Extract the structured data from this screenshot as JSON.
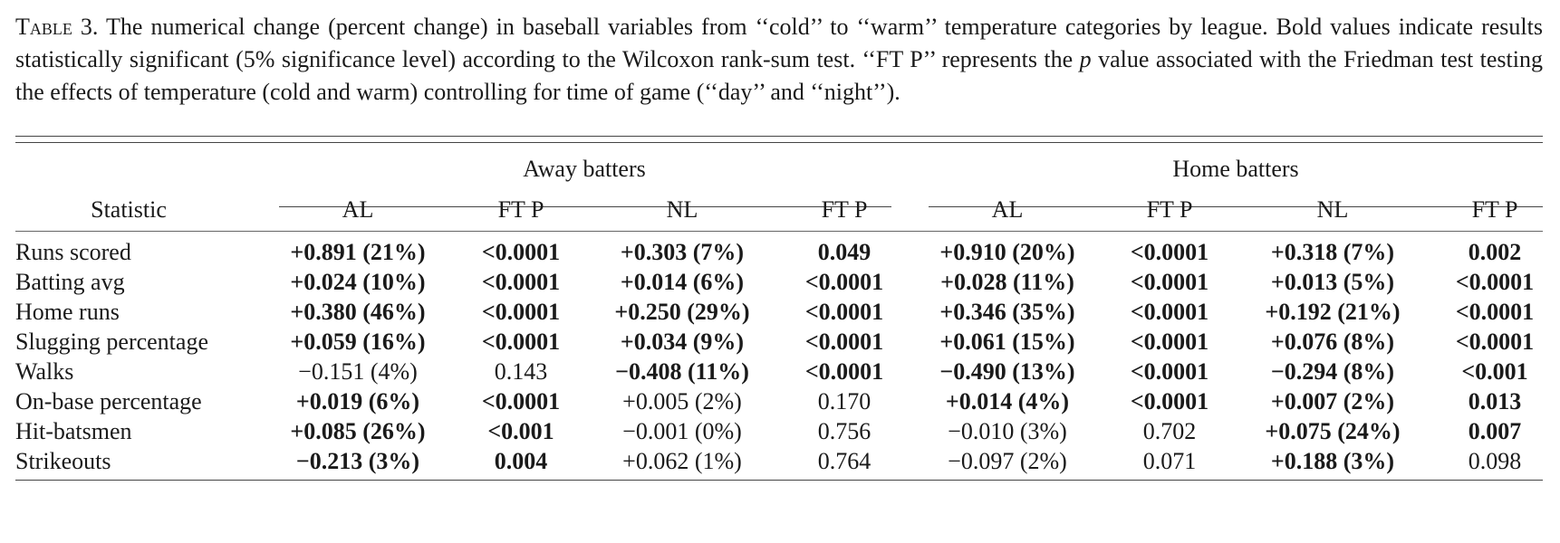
{
  "caption": {
    "label": "Table 3.",
    "text_before_p": " The numerical change (percent change) in baseball variables from ‘‘cold’’ to ‘‘warm’’ temperature categories by league. Bold values indicate results statistically significant (5% significance level) according to the Wilcoxon rank-sum test. ‘‘FT P’’ represents the ",
    "p_symbol": "p",
    "text_after_p": " value associated with the Friedman test testing the effects of temperature (cold and warm) controlling for time of game (‘‘day’’ and ‘‘night’’)."
  },
  "table": {
    "group_headers": [
      "Away batters",
      "Home batters"
    ],
    "statistic_header": "Statistic",
    "column_headers": [
      "AL",
      "FT P",
      "NL",
      "FT P",
      "AL",
      "FT P",
      "NL",
      "FT P"
    ],
    "rows": [
      {
        "statistic": "Runs scored",
        "cells": [
          {
            "text": "+0.891 (21%)",
            "bold": true
          },
          {
            "text": "<0.0001",
            "bold": true
          },
          {
            "text": "+0.303 (7%)",
            "bold": true
          },
          {
            "text": "0.049",
            "bold": true
          },
          {
            "text": "+0.910 (20%)",
            "bold": true
          },
          {
            "text": "<0.0001",
            "bold": true
          },
          {
            "text": "+0.318 (7%)",
            "bold": true
          },
          {
            "text": "0.002",
            "bold": true
          }
        ]
      },
      {
        "statistic": "Batting avg",
        "cells": [
          {
            "text": "+0.024 (10%)",
            "bold": true
          },
          {
            "text": "<0.0001",
            "bold": true
          },
          {
            "text": "+0.014 (6%)",
            "bold": true
          },
          {
            "text": "<0.0001",
            "bold": true
          },
          {
            "text": "+0.028 (11%)",
            "bold": true
          },
          {
            "text": "<0.0001",
            "bold": true
          },
          {
            "text": "+0.013 (5%)",
            "bold": true
          },
          {
            "text": "<0.0001",
            "bold": true
          }
        ]
      },
      {
        "statistic": "Home runs",
        "cells": [
          {
            "text": "+0.380 (46%)",
            "bold": true
          },
          {
            "text": "<0.0001",
            "bold": true
          },
          {
            "text": "+0.250 (29%)",
            "bold": true
          },
          {
            "text": "<0.0001",
            "bold": true
          },
          {
            "text": "+0.346 (35%)",
            "bold": true
          },
          {
            "text": "<0.0001",
            "bold": true
          },
          {
            "text": "+0.192 (21%)",
            "bold": true
          },
          {
            "text": "<0.0001",
            "bold": true
          }
        ]
      },
      {
        "statistic": "Slugging percentage",
        "cells": [
          {
            "text": "+0.059 (16%)",
            "bold": true
          },
          {
            "text": "<0.0001",
            "bold": true
          },
          {
            "text": "+0.034 (9%)",
            "bold": true
          },
          {
            "text": "<0.0001",
            "bold": true
          },
          {
            "text": "+0.061 (15%)",
            "bold": true
          },
          {
            "text": "<0.0001",
            "bold": true
          },
          {
            "text": "+0.076 (8%)",
            "bold": true
          },
          {
            "text": "<0.0001",
            "bold": true
          }
        ]
      },
      {
        "statistic": "Walks",
        "cells": [
          {
            "text": "−0.151 (4%)",
            "bold": false
          },
          {
            "text": "0.143",
            "bold": false
          },
          {
            "text": "−0.408 (11%)",
            "bold": true
          },
          {
            "text": "<0.0001",
            "bold": true
          },
          {
            "text": "−0.490 (13%)",
            "bold": true
          },
          {
            "text": "<0.0001",
            "bold": true
          },
          {
            "text": "−0.294 (8%)",
            "bold": true
          },
          {
            "text": "<0.001",
            "bold": true
          }
        ]
      },
      {
        "statistic": "On-base percentage",
        "cells": [
          {
            "text": "+0.019 (6%)",
            "bold": true
          },
          {
            "text": "<0.0001",
            "bold": true
          },
          {
            "text": "+0.005 (2%)",
            "bold": false
          },
          {
            "text": "0.170",
            "bold": false
          },
          {
            "text": "+0.014 (4%)",
            "bold": true
          },
          {
            "text": "<0.0001",
            "bold": true
          },
          {
            "text": "+0.007 (2%)",
            "bold": true
          },
          {
            "text": "0.013",
            "bold": true
          }
        ]
      },
      {
        "statistic": "Hit-batsmen",
        "cells": [
          {
            "text": "+0.085 (26%)",
            "bold": true
          },
          {
            "text": "<0.001",
            "bold": true
          },
          {
            "text": "−0.001 (0%)",
            "bold": false
          },
          {
            "text": "0.756",
            "bold": false
          },
          {
            "text": "−0.010 (3%)",
            "bold": false
          },
          {
            "text": "0.702",
            "bold": false
          },
          {
            "text": "+0.075 (24%)",
            "bold": true
          },
          {
            "text": "0.007",
            "bold": true
          }
        ]
      },
      {
        "statistic": "Strikeouts",
        "cells": [
          {
            "text": "−0.213 (3%)",
            "bold": true
          },
          {
            "text": "0.004",
            "bold": true
          },
          {
            "text": "+0.062 (1%)",
            "bold": false
          },
          {
            "text": "0.764",
            "bold": false
          },
          {
            "text": "−0.097 (2%)",
            "bold": false
          },
          {
            "text": "0.071",
            "bold": false
          },
          {
            "text": "+0.188 (3%)",
            "bold": true
          },
          {
            "text": "0.098",
            "bold": false
          }
        ]
      }
    ]
  }
}
